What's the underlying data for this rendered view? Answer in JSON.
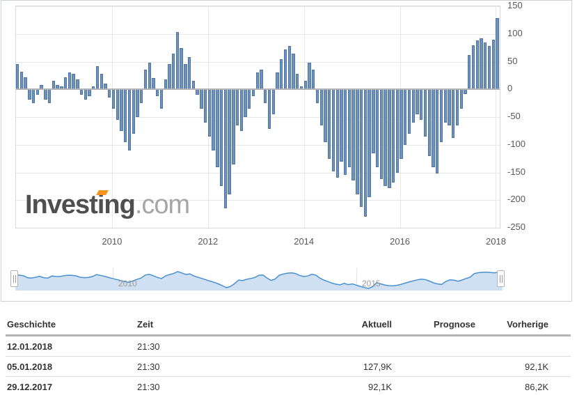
{
  "chart_data": {
    "type": "bar",
    "note": "weekly net-positions style bar series, values in K contracts, estimated from gridlines at monthly resolution",
    "x_range": [
      2008.0,
      2018.08
    ],
    "x_tick_years": [
      2010,
      2012,
      2014,
      2016,
      2018
    ],
    "x_tick_labels": [
      "2010",
      "2012",
      "2014",
      "2016",
      "2018"
    ],
    "y_ticks": [
      150,
      100,
      50,
      0,
      -50,
      -100,
      -150,
      -200,
      -250
    ],
    "ylim": [
      -250,
      150
    ],
    "grid": true,
    "values": [
      45,
      32,
      22,
      -18,
      -25,
      -10,
      8,
      -18,
      -25,
      15,
      8,
      5,
      22,
      30,
      28,
      18,
      -10,
      -18,
      -12,
      5,
      42,
      28,
      10,
      -15,
      -35,
      -55,
      -75,
      -95,
      -110,
      -80,
      -50,
      -25,
      35,
      48,
      20,
      -12,
      -35,
      18,
      45,
      65,
      103,
      75,
      45,
      58,
      15,
      -10,
      -35,
      -60,
      -85,
      -110,
      -140,
      -175,
      -215,
      -190,
      -135,
      -65,
      -75,
      -50,
      -35,
      -12,
      30,
      35,
      -25,
      -72,
      -45,
      30,
      55,
      72,
      78,
      65,
      28,
      5,
      15,
      48,
      35,
      -25,
      -65,
      -95,
      -125,
      -148,
      -160,
      -130,
      -155,
      -140,
      -165,
      -190,
      -212,
      -230,
      -195,
      -115,
      -140,
      -162,
      -175,
      -178,
      -168,
      -150,
      -125,
      -100,
      -80,
      -60,
      -45,
      -55,
      -85,
      -120,
      -140,
      -152,
      -95,
      -60,
      -65,
      -88,
      -65,
      -35,
      -8,
      62,
      80,
      88,
      92,
      85,
      78,
      90,
      128
    ]
  },
  "colors": {
    "bar_fill": "#7093bc",
    "bar_border": "#4d73a2",
    "grid": "#e7e7e7",
    "zero_line": "#b3b3b3",
    "axis_text": "#58585a",
    "nav_line": "#4a90d2",
    "nav_fill": "#cfe0f2"
  },
  "logo": {
    "main": "Investing",
    "suffix": ".com"
  },
  "navigator": {
    "axis_labels": [
      "2010",
      "2015"
    ]
  },
  "table": {
    "headers": [
      "Geschichte",
      "Zeit",
      "Aktuell",
      "Prognose",
      "Vorherige"
    ],
    "rows": [
      {
        "date": "12.01.2018",
        "time": "21:30",
        "actual": "",
        "forecast": "",
        "previous": ""
      },
      {
        "date": "05.01.2018",
        "time": "21:30",
        "actual": "127,9K",
        "forecast": "",
        "previous": "92,1K"
      },
      {
        "date": "29.12.2017",
        "time": "21:30",
        "actual": "92,1K",
        "forecast": "",
        "previous": "86,2K"
      }
    ]
  }
}
